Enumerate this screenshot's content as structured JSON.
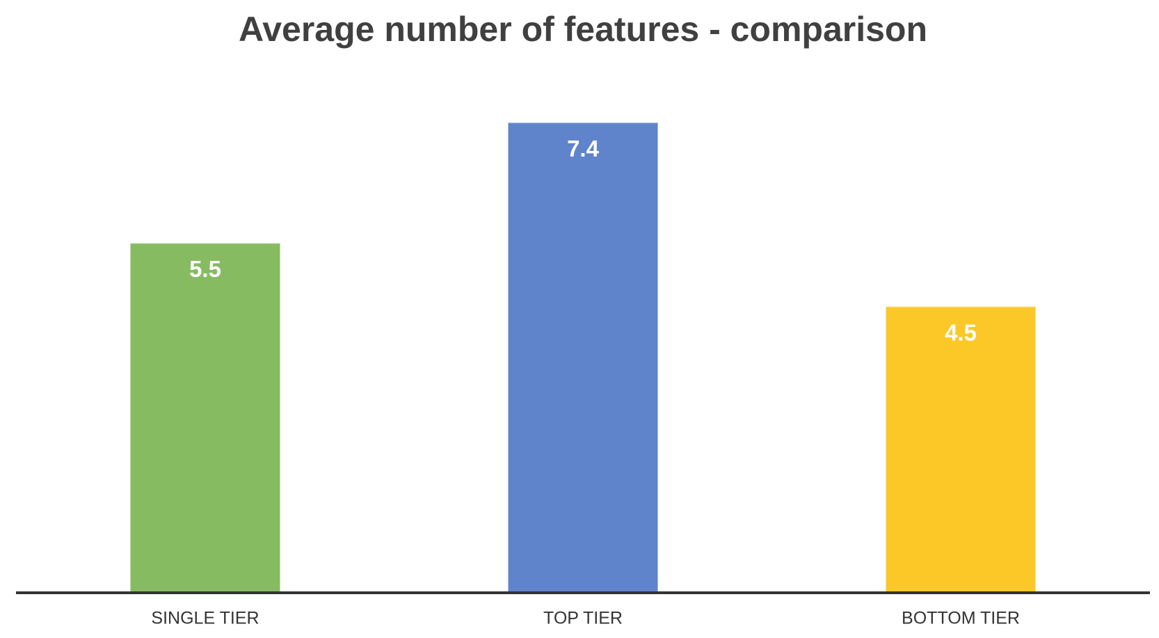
{
  "chart_data": {
    "type": "bar",
    "title": "Average number of features - comparison",
    "categories": [
      "SINGLE TIER",
      "TOP TIER",
      "BOTTOM TIER"
    ],
    "values": [
      5.5,
      7.4,
      4.5
    ],
    "colors": [
      "#87bb62",
      "#6084cc",
      "#fcc828"
    ]
  }
}
